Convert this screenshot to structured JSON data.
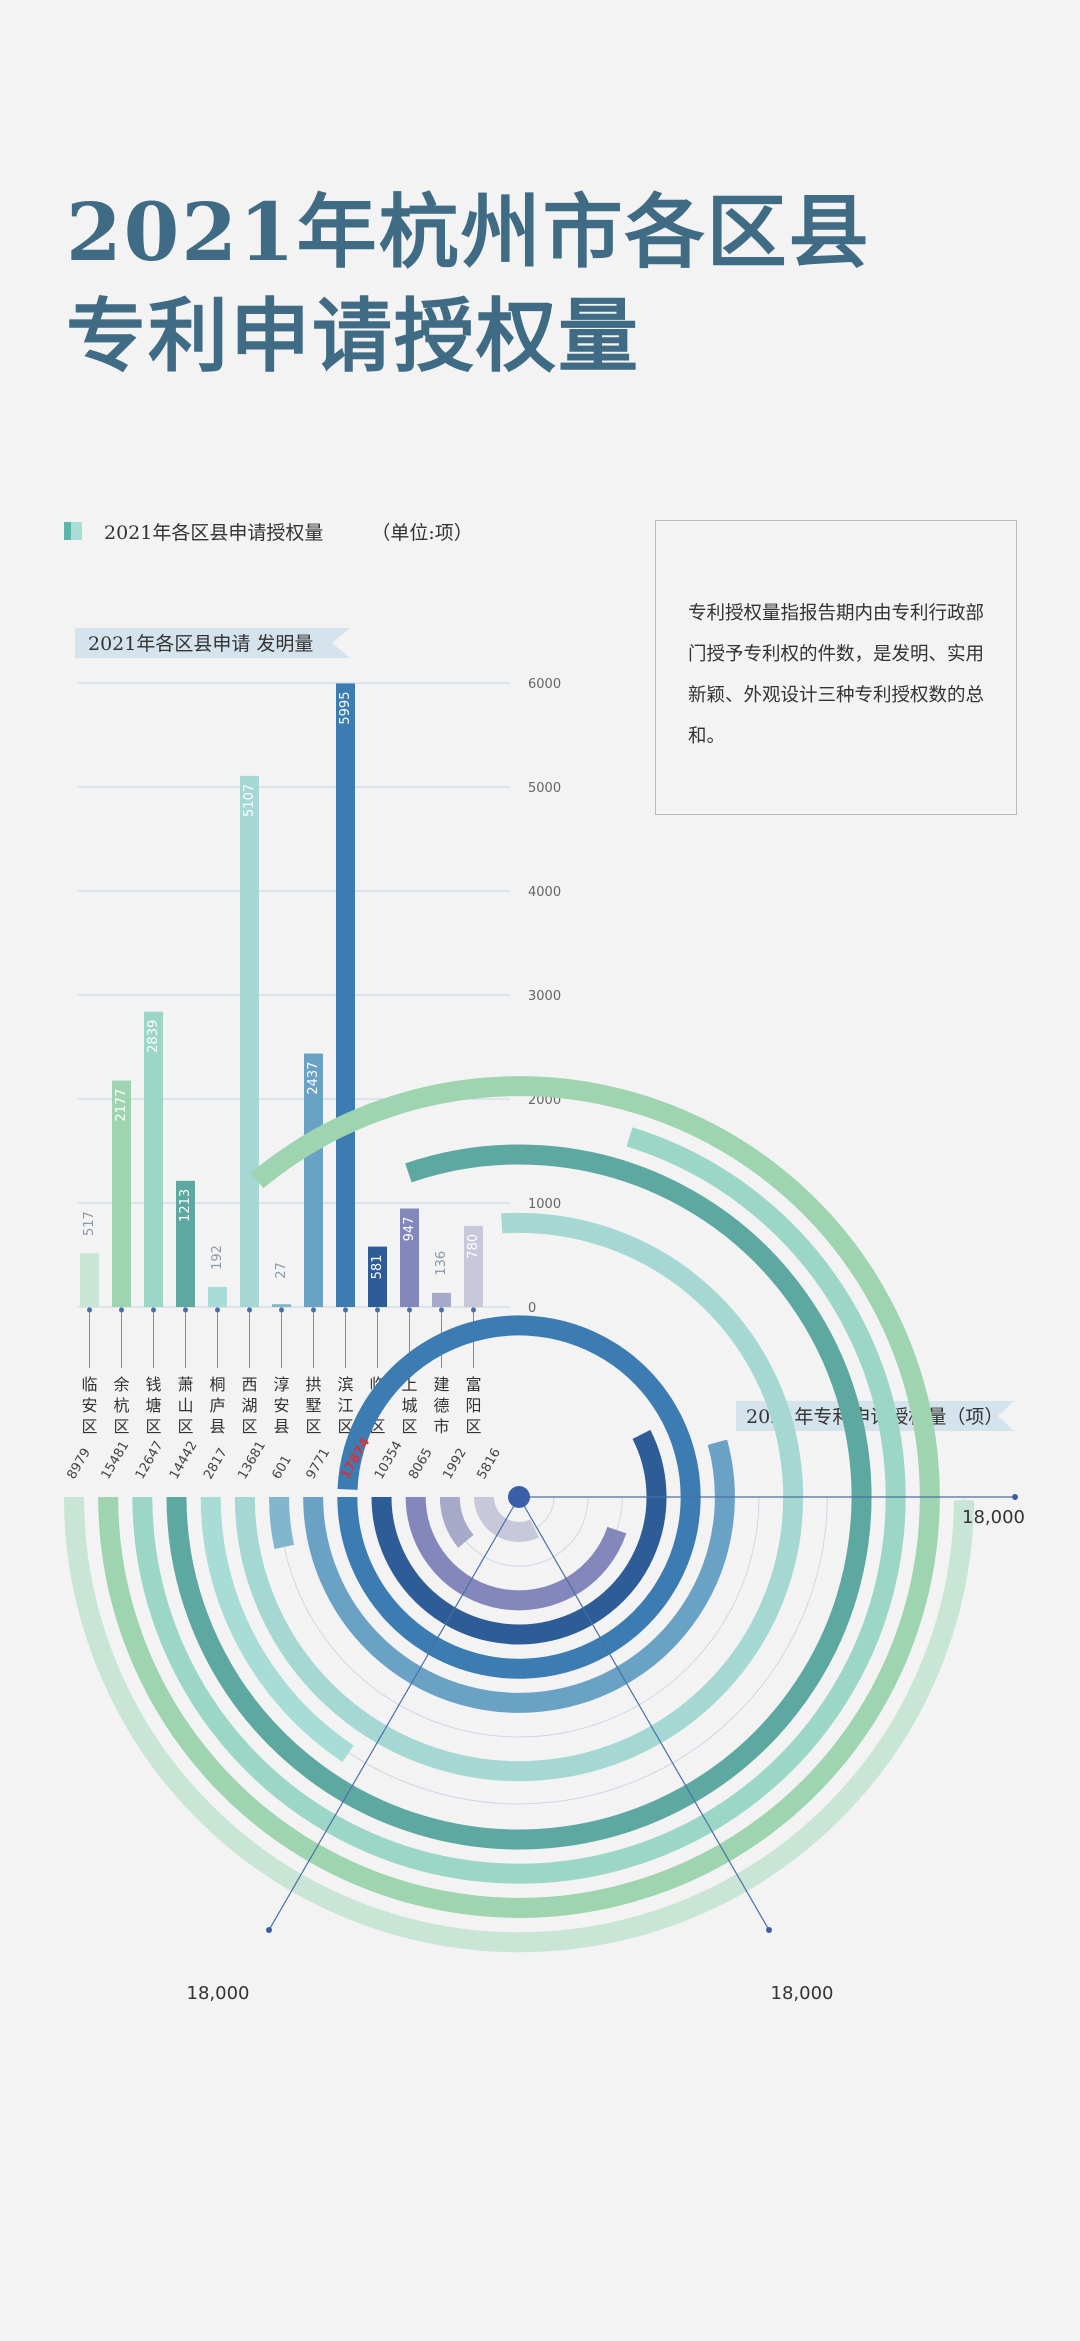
{
  "title": {
    "line1": "2021年杭州市各区县",
    "line2": "专利申请授权量"
  },
  "legend": {
    "label": "2021年各区县申请授权量",
    "unit": "（单位:项）"
  },
  "note": "专利授权量指报告期内由专利行政部门授予专利权的件数，是发明、实用新颖、外观设计三种专利授权数的总和。",
  "colors": {
    "title": "#3f6b84",
    "districts": [
      "#c9e5d5",
      "#9fd4b0",
      "#9cd6c6",
      "#5ea8a2",
      "#a8dcd6",
      "#a6d8d3",
      "#82b6cc",
      "#6aa2c6",
      "#3c7cb2",
      "#2d5c97",
      "#8487bb",
      "#a7a9c9",
      "#c7c8da"
    ]
  },
  "chart_data": [
    {
      "type": "bar",
      "title": "2021年各区县申请 发明量",
      "categories": [
        "临安区",
        "余杭区",
        "钱塘区",
        "萧山区",
        "桐庐县",
        "西湖区",
        "淳安县",
        "拱墅区",
        "滨江区",
        "临平区",
        "上城区",
        "建德市",
        "富阳区"
      ],
      "values": [
        517,
        2177,
        2839,
        1213,
        192,
        5107,
        27,
        2437,
        5995,
        581,
        947,
        136,
        780
      ],
      "ylim": [
        0,
        6000
      ],
      "yticks": [
        0,
        1000,
        2000,
        3000,
        4000,
        5000,
        6000
      ],
      "grid": true
    },
    {
      "type": "radial-bar",
      "title": "2021年专利申请授权量（项）",
      "categories": [
        "临安区",
        "余杭区",
        "钱塘区",
        "萧山区",
        "桐庐县",
        "西湖区",
        "淳安县",
        "拱墅区",
        "滨江区",
        "临平区",
        "上城区",
        "建德市",
        "富阳区"
      ],
      "values": [
        8979,
        15481,
        12647,
        14442,
        2817,
        13681,
        601,
        9771,
        17874,
        10354,
        8065,
        1992,
        5816
      ],
      "max": 18000,
      "axis_labels": [
        "18,000",
        "18,000",
        "18,000"
      ],
      "highlight": "滨江区",
      "highlight_color": "#d2343e"
    }
  ]
}
